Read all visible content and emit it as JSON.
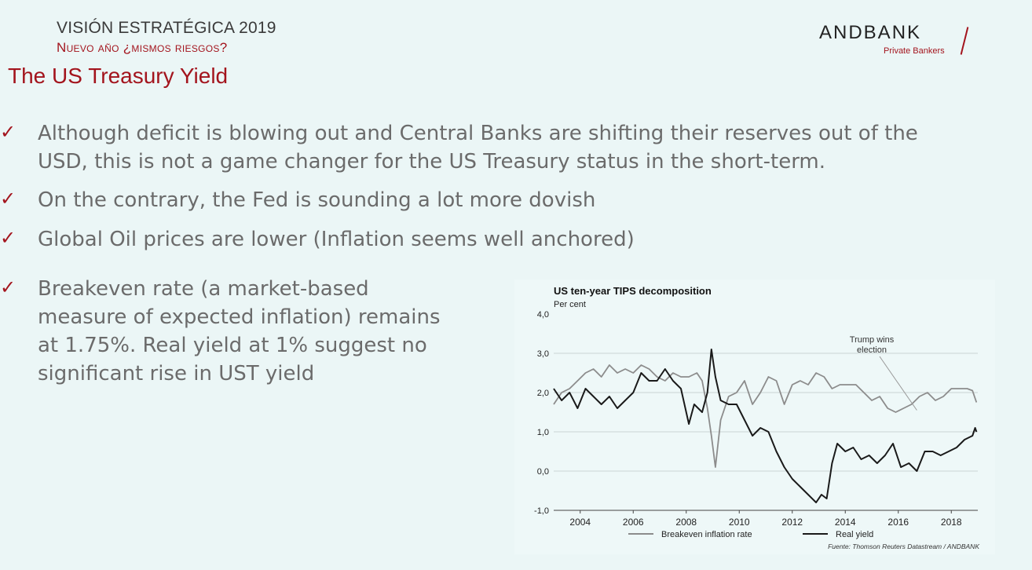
{
  "header": {
    "line1": "VISIÓN ESTRATÉGICA 2019",
    "line2": "Nuevo año ¿mismos riesgos?",
    "title": "The US Treasury Yield"
  },
  "logo": {
    "name": "ANDBANK",
    "tagline": "Private Bankers",
    "accent": "#a3141d"
  },
  "bullets": [
    {
      "icon": "check-icon",
      "lines": [
        "Although deficit is blowing out and Central Banks are shifting their reserves out of the",
        "USD, this is not a game changer for the US Treasury status in the short-term."
      ]
    },
    {
      "icon": "check-icon",
      "lines": [
        "On the contrary, the Fed is sounding a lot more dovish"
      ]
    },
    {
      "icon": "check-icon",
      "lines": [
        "Global Oil prices are lower (Inflation seems well anchored)"
      ]
    },
    {
      "icon": "check-icon",
      "lines": [
        "Breakeven rate (a market-based",
        "measure of expected inflation) remains",
        "at 1.75%. Real yield at 1% suggest no",
        "significant rise in UST yield"
      ]
    }
  ],
  "chart_data": {
    "type": "line",
    "title": "US ten-year TIPS decomposition",
    "subtitle": "Per cent",
    "xlabel": "",
    "ylabel": "",
    "xlim": [
      2003,
      2019
    ],
    "ylim": [
      -1.0,
      4.0
    ],
    "ytick_labels": [
      "-1,0",
      "0,0",
      "1,0",
      "2,0",
      "3,0",
      "4,0"
    ],
    "yticks": [
      -1,
      0,
      1,
      2,
      3,
      4
    ],
    "xtick_labels": [
      "2004",
      "2006",
      "2008",
      "2010",
      "2012",
      "2014",
      "2016",
      "2018"
    ],
    "xticks": [
      2004,
      2006,
      2008,
      2010,
      2012,
      2014,
      2016,
      2018
    ],
    "grid": "horizontal",
    "legend_position": "bottom",
    "annotation": {
      "text_lines": [
        "Trump wins",
        "election"
      ],
      "target": [
        2016.7,
        1.55
      ]
    },
    "source": "Fuente: Thomson Reuters Datastream / ANDBANK",
    "series": [
      {
        "name": "Breakeven inflation rate",
        "color": "#8c8c8c",
        "x": [
          2003.0,
          2003.3,
          2003.6,
          2003.9,
          2004.2,
          2004.5,
          2004.8,
          2005.1,
          2005.4,
          2005.7,
          2006.0,
          2006.3,
          2006.6,
          2006.9,
          2007.2,
          2007.5,
          2007.8,
          2008.1,
          2008.4,
          2008.6,
          2008.8,
          2008.95,
          2009.1,
          2009.3,
          2009.6,
          2009.9,
          2010.2,
          2010.5,
          2010.8,
          2011.1,
          2011.4,
          2011.7,
          2012.0,
          2012.3,
          2012.6,
          2012.9,
          2013.2,
          2013.5,
          2013.8,
          2014.1,
          2014.4,
          2014.7,
          2015.0,
          2015.3,
          2015.6,
          2015.9,
          2016.2,
          2016.5,
          2016.8,
          2017.1,
          2017.4,
          2017.7,
          2018.0,
          2018.3,
          2018.6,
          2018.8,
          2018.95
        ],
        "y": [
          1.7,
          2.0,
          2.1,
          2.3,
          2.5,
          2.6,
          2.4,
          2.7,
          2.5,
          2.6,
          2.5,
          2.7,
          2.6,
          2.4,
          2.3,
          2.5,
          2.4,
          2.4,
          2.5,
          2.3,
          1.6,
          0.9,
          0.1,
          1.3,
          1.9,
          2.0,
          2.3,
          1.7,
          2.0,
          2.4,
          2.3,
          1.7,
          2.2,
          2.3,
          2.2,
          2.5,
          2.4,
          2.1,
          2.2,
          2.2,
          2.2,
          2.0,
          1.8,
          1.9,
          1.6,
          1.5,
          1.6,
          1.7,
          1.9,
          2.0,
          1.8,
          1.9,
          2.1,
          2.1,
          2.1,
          2.05,
          1.75
        ]
      },
      {
        "name": "Real yield",
        "color": "#1a1a1a",
        "x": [
          2003.0,
          2003.3,
          2003.6,
          2003.9,
          2004.2,
          2004.5,
          2004.8,
          2005.1,
          2005.4,
          2005.7,
          2006.0,
          2006.3,
          2006.6,
          2006.9,
          2007.2,
          2007.5,
          2007.8,
          2008.1,
          2008.3,
          2008.6,
          2008.8,
          2008.95,
          2009.1,
          2009.3,
          2009.6,
          2009.9,
          2010.2,
          2010.5,
          2010.8,
          2011.1,
          2011.4,
          2011.7,
          2012.0,
          2012.3,
          2012.6,
          2012.9,
          2013.1,
          2013.3,
          2013.5,
          2013.7,
          2014.0,
          2014.3,
          2014.6,
          2014.9,
          2015.2,
          2015.5,
          2015.8,
          2016.1,
          2016.4,
          2016.7,
          2017.0,
          2017.3,
          2017.6,
          2017.9,
          2018.2,
          2018.5,
          2018.8,
          2018.9,
          2018.95
        ],
        "y": [
          2.1,
          1.8,
          2.0,
          1.6,
          2.1,
          1.9,
          1.7,
          1.9,
          1.6,
          1.8,
          2.0,
          2.5,
          2.3,
          2.3,
          2.6,
          2.3,
          2.1,
          1.2,
          1.7,
          1.5,
          2.0,
          3.1,
          2.4,
          1.8,
          1.7,
          1.7,
          1.3,
          0.9,
          1.1,
          1.0,
          0.5,
          0.1,
          -0.2,
          -0.4,
          -0.6,
          -0.8,
          -0.6,
          -0.7,
          0.2,
          0.7,
          0.5,
          0.6,
          0.3,
          0.4,
          0.2,
          0.4,
          0.7,
          0.1,
          0.2,
          0.0,
          0.5,
          0.5,
          0.4,
          0.5,
          0.6,
          0.8,
          0.9,
          1.1,
          1.0
        ]
      }
    ]
  }
}
